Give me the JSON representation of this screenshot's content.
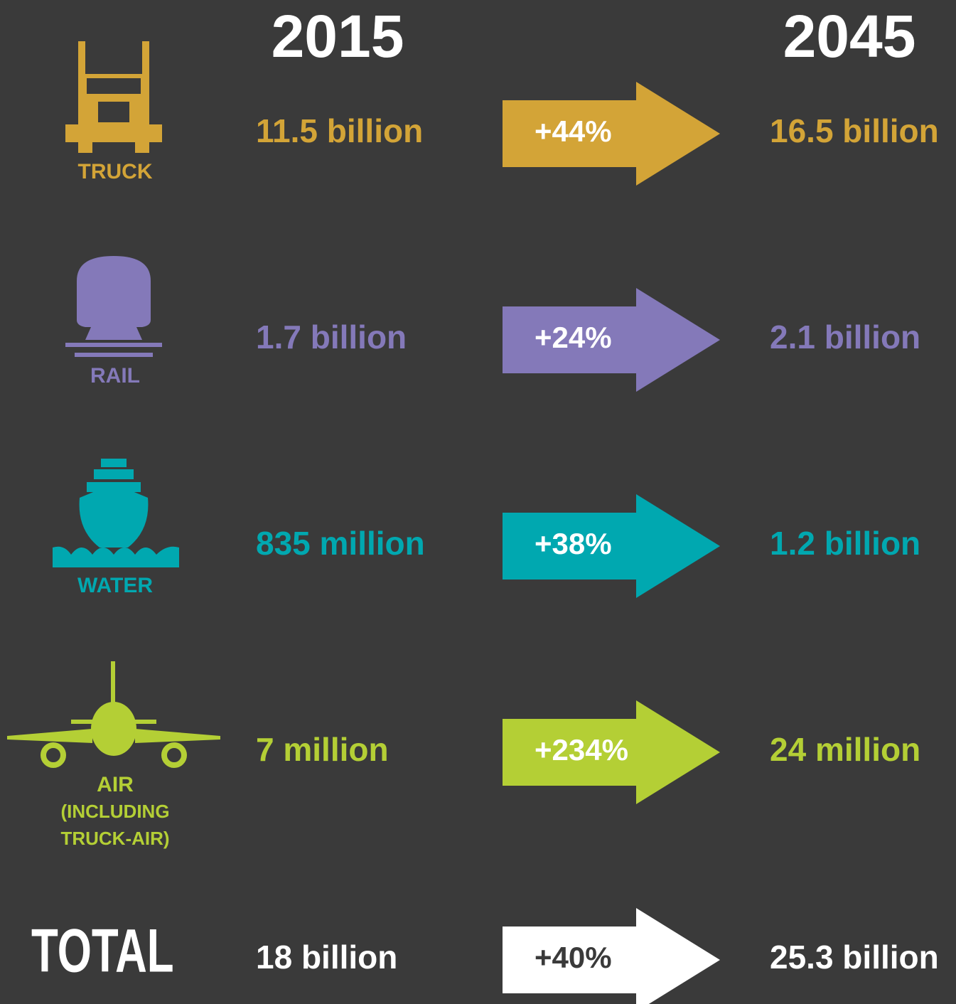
{
  "header": {
    "year_from": "2015",
    "year_to": "2045"
  },
  "rows": [
    {
      "label": [
        "TRUCK"
      ],
      "from": "11.5 billion",
      "change": "+44%",
      "to": "16.5 billion",
      "color": "#d3a437"
    },
    {
      "label": [
        "RAIL"
      ],
      "from": "1.7 billion",
      "change": "+24%",
      "to": "2.1 billion",
      "color": "#8479b9"
    },
    {
      "label": [
        "WATER"
      ],
      "from": "835 million",
      "change": "+38%",
      "to": "1.2 billion",
      "color": "#00a8b0"
    },
    {
      "label": [
        "AIR",
        "(INCLUDING",
        "TRUCK-AIR)"
      ],
      "from": "7 million",
      "change": "+234%",
      "to": "24 million",
      "color": "#b4cf35"
    }
  ],
  "total": {
    "label": "TOTAL",
    "from": "18 billion",
    "change": "+40%",
    "to": "25.3 billion",
    "color": "#ffffff",
    "change_text_color": "#3a3a3a"
  }
}
